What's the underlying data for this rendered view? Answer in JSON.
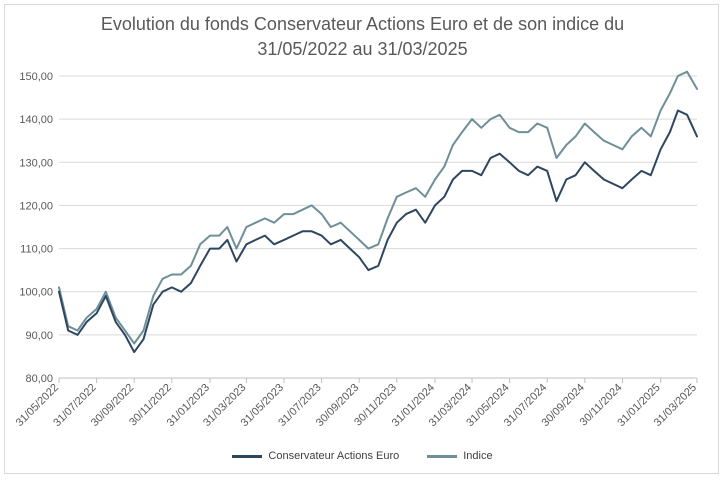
{
  "chart_data": {
    "type": "line",
    "title_line1": "Evolution du fonds Conservateur Actions Euro et de son indice du",
    "title_line2": "31/05/2022 au 31/03/2025",
    "xlabel": "",
    "ylabel": "",
    "ylim": [
      80,
      150
    ],
    "yticks": [
      "150,00",
      "140,00",
      "130,00",
      "120,00",
      "110,00",
      "100,00",
      "90,00",
      "80,00"
    ],
    "ytick_values": [
      150,
      140,
      130,
      120,
      110,
      100,
      90,
      80
    ],
    "xticks": [
      "31/05/2022",
      "31/07/2022",
      "30/09/2022",
      "30/11/2022",
      "31/01/2023",
      "31/03/2023",
      "31/05/2023",
      "31/07/2023",
      "30/09/2023",
      "30/11/2023",
      "31/01/2024",
      "31/03/2024",
      "31/05/2024",
      "31/07/2024",
      "30/09/2024",
      "30/11/2024",
      "31/01/2025",
      "31/03/2025"
    ],
    "grid": "horizontal",
    "legend_position": "bottom",
    "x": [
      "31/05/2022",
      "15/06/2022",
      "30/06/2022",
      "15/07/2022",
      "31/07/2022",
      "15/08/2022",
      "31/08/2022",
      "15/09/2022",
      "30/09/2022",
      "15/10/2022",
      "31/10/2022",
      "15/11/2022",
      "30/11/2022",
      "15/12/2022",
      "31/12/2022",
      "15/01/2023",
      "31/01/2023",
      "15/02/2023",
      "28/02/2023",
      "15/03/2023",
      "31/03/2023",
      "15/04/2023",
      "30/04/2023",
      "15/05/2023",
      "31/05/2023",
      "15/06/2023",
      "30/06/2023",
      "15/07/2023",
      "31/07/2023",
      "15/08/2023",
      "31/08/2023",
      "15/09/2023",
      "30/09/2023",
      "15/10/2023",
      "31/10/2023",
      "15/11/2023",
      "30/11/2023",
      "15/12/2023",
      "31/12/2023",
      "15/01/2024",
      "31/01/2024",
      "15/02/2024",
      "29/02/2024",
      "15/03/2024",
      "31/03/2024",
      "15/04/2024",
      "30/04/2024",
      "15/05/2024",
      "31/05/2024",
      "15/06/2024",
      "30/06/2024",
      "15/07/2024",
      "31/07/2024",
      "15/08/2024",
      "31/08/2024",
      "15/09/2024",
      "30/09/2024",
      "15/10/2024",
      "31/10/2024",
      "15/11/2024",
      "30/11/2024",
      "15/12/2024",
      "31/12/2024",
      "15/01/2025",
      "31/01/2025",
      "15/02/2025",
      "28/02/2025",
      "15/03/2025",
      "31/03/2025"
    ],
    "series": [
      {
        "name": "Conservateur Actions Euro",
        "color": "#2e4660",
        "values": [
          100,
          91,
          90,
          93,
          95,
          99,
          93,
          90,
          86,
          89,
          97,
          100,
          101,
          100,
          102,
          106,
          110,
          110,
          112,
          107,
          111,
          112,
          113,
          111,
          112,
          113,
          114,
          114,
          113,
          111,
          112,
          110,
          108,
          105,
          106,
          112,
          116,
          118,
          119,
          116,
          120,
          122,
          126,
          128,
          128,
          127,
          131,
          132,
          130,
          128,
          127,
          129,
          128,
          121,
          126,
          127,
          130,
          128,
          126,
          125,
          124,
          126,
          128,
          127,
          133,
          137,
          142,
          141,
          136
        ]
      },
      {
        "name": "Indice",
        "color": "#6e8f98",
        "values": [
          101,
          92,
          91,
          94,
          96,
          100,
          94,
          91,
          88,
          91,
          99,
          103,
          104,
          104,
          106,
          111,
          113,
          113,
          115,
          110,
          115,
          116,
          117,
          116,
          118,
          118,
          119,
          120,
          118,
          115,
          116,
          114,
          112,
          110,
          111,
          117,
          122,
          123,
          124,
          122,
          126,
          129,
          134,
          137,
          140,
          138,
          140,
          141,
          138,
          137,
          137,
          139,
          138,
          131,
          134,
          136,
          139,
          137,
          135,
          134,
          133,
          136,
          138,
          136,
          142,
          146,
          150,
          151,
          147
        ]
      }
    ]
  }
}
